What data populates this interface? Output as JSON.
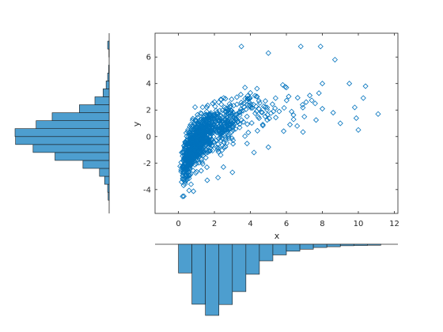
{
  "chart_data": [
    {
      "type": "scatter",
      "marker": "diamond",
      "color": "#0072BD",
      "xlabel": "x",
      "ylabel": "y",
      "xlim": [
        -1.3,
        12.2
      ],
      "ylim": [
        -5.8,
        7.8
      ],
      "xticks": [
        0,
        2,
        4,
        6,
        8,
        10,
        12
      ],
      "yticks": [
        -4,
        -2,
        0,
        2,
        4,
        6
      ],
      "xtick_labels": [
        "0",
        "2",
        "4",
        "6",
        "8",
        "10",
        "12"
      ],
      "ytick_labels": [
        "-4",
        "-2",
        "0",
        "2",
        "4",
        "6"
      ],
      "grid": false,
      "box": true,
      "outlier_points": {
        "x": [
          3.5,
          5.0,
          6.8,
          7.9,
          8.7,
          9.5,
          10.4,
          11.1,
          8.0,
          7.3,
          6.0,
          5.8,
          8.0,
          8.6,
          7.1,
          6.9,
          5.4,
          6.4,
          7.6,
          7.0,
          6.2,
          4.0,
          3.7,
          9.0,
          10.0,
          4.2,
          5.0,
          2.5,
          3.0,
          0.7,
          1.6,
          0.3,
          2.2,
          6.6,
          5.6,
          9.8
        ],
        "y": [
          6.8,
          6.3,
          6.8,
          6.8,
          5.8,
          4.0,
          3.8,
          1.7,
          4.0,
          3.1,
          3.7,
          3.9,
          2.1,
          1.8,
          2.6,
          2.4,
          2.9,
          1.3,
          2.5,
          1.5,
          0.9,
          3.3,
          3.7,
          1.0,
          0.5,
          -1.2,
          -0.8,
          -2.3,
          -2.7,
          -3.6,
          -3.3,
          -4.5,
          -3.1,
          0.8,
          1.9,
          2.2
        ]
      },
      "cloud_note": "Dense cloud of about 1000 points concentrated around x 0–3, y -3–2, with y rising roughly as log of x"
    },
    {
      "type": "bar",
      "orientation": "vertical",
      "description": "histogram of x values, drawn below the scatter axes",
      "color": "#4D9ECF",
      "bin_edges": [
        0,
        0.75,
        1.5,
        2.25,
        3.0,
        3.75,
        4.5,
        5.25,
        6.0,
        6.75,
        7.5,
        8.25,
        9.0,
        9.75,
        10.5,
        11.25
      ],
      "counts": [
        116,
        242,
        287,
        243,
        191,
        121,
        67,
        43,
        28,
        20,
        13,
        10,
        6,
        5,
        4
      ]
    },
    {
      "type": "bar",
      "orientation": "horizontal",
      "description": "histogram of y values, drawn to the left of the scatter axes",
      "color": "#4D9ECF",
      "bin_edges": [
        -4.8,
        -4.2,
        -3.6,
        -3.0,
        -2.4,
        -1.8,
        -1.2,
        -0.6,
        0.0,
        0.6,
        1.2,
        1.8,
        2.4,
        3.0,
        3.6,
        4.2,
        4.8,
        5.4,
        6.0,
        6.6,
        7.2
      ],
      "counts": [
        4,
        6,
        18,
        38,
        103,
        213,
        299,
        368,
        370,
        287,
        224,
        117,
        56,
        24,
        12,
        6,
        2,
        0,
        1,
        6
      ]
    }
  ]
}
